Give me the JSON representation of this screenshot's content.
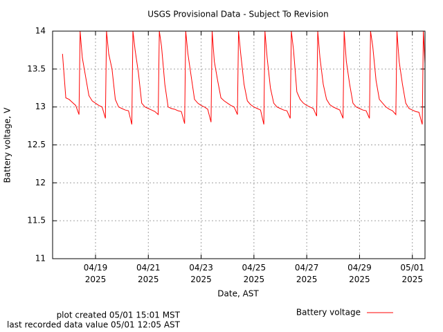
{
  "chart_data": {
    "type": "line",
    "title": "USGS Provisional Data - Subject To Revision",
    "x_label": "Date, AST",
    "y_label": "Battery voltage, V",
    "ylim": [
      11,
      14
    ],
    "yticks": [
      11,
      11.5,
      12,
      12.5,
      13,
      13.5,
      14
    ],
    "xlim": [
      "2025-04-17T09:00",
      "2025-05-01T11:30"
    ],
    "xticks": [
      {
        "value": "2025-04-19T00:00",
        "label": [
          "04/19",
          "2025"
        ]
      },
      {
        "value": "2025-04-21T00:00",
        "label": [
          "04/21",
          "2025"
        ]
      },
      {
        "value": "2025-04-23T00:00",
        "label": [
          "04/23",
          "2025"
        ]
      },
      {
        "value": "2025-04-25T00:00",
        "label": [
          "04/25",
          "2025"
        ]
      },
      {
        "value": "2025-04-27T00:00",
        "label": [
          "04/27",
          "2025"
        ]
      },
      {
        "value": "2025-04-29T00:00",
        "label": [
          "04/29",
          "2025"
        ]
      },
      {
        "value": "2025-05-01T00:00",
        "label": [
          "05/01",
          "2025"
        ]
      }
    ],
    "grid": true,
    "legend": "bottom",
    "footer": [
      "plot created 05/01 15:01 MST",
      "last recorded data value 05/01 12:05 AST"
    ],
    "x": [
      "2025-04-17T18:00",
      "2025-04-17T21:00",
      "2025-04-18T00:00",
      "2025-04-18T03:00",
      "2025-04-18T06:00",
      "2025-04-18T09:00",
      "2025-04-18T10:00",
      "2025-04-18T12:00",
      "2025-04-18T15:00",
      "2025-04-18T18:00",
      "2025-04-18T21:00",
      "2025-04-19T00:00",
      "2025-04-19T03:00",
      "2025-04-19T06:00",
      "2025-04-19T09:00",
      "2025-04-19T10:00",
      "2025-04-19T12:00",
      "2025-04-19T15:00",
      "2025-04-19T18:00",
      "2025-04-19T21:00",
      "2025-04-20T00:00",
      "2025-04-20T03:00",
      "2025-04-20T06:00",
      "2025-04-20T09:00",
      "2025-04-20T10:00",
      "2025-04-20T12:00",
      "2025-04-20T15:00",
      "2025-04-20T18:00",
      "2025-04-20T21:00",
      "2025-04-21T00:00",
      "2025-04-21T03:00",
      "2025-04-21T06:00",
      "2025-04-21T09:00",
      "2025-04-21T10:00",
      "2025-04-21T12:00",
      "2025-04-21T15:00",
      "2025-04-21T18:00",
      "2025-04-21T21:00",
      "2025-04-22T00:00",
      "2025-04-22T03:00",
      "2025-04-22T06:00",
      "2025-04-22T09:00",
      "2025-04-22T10:00",
      "2025-04-22T12:00",
      "2025-04-22T15:00",
      "2025-04-22T18:00",
      "2025-04-22T21:00",
      "2025-04-23T00:00",
      "2025-04-23T03:00",
      "2025-04-23T06:00",
      "2025-04-23T09:00",
      "2025-04-23T10:00",
      "2025-04-23T12:00",
      "2025-04-23T15:00",
      "2025-04-23T18:00",
      "2025-04-23T21:00",
      "2025-04-24T00:00",
      "2025-04-24T03:00",
      "2025-04-24T06:00",
      "2025-04-24T09:00",
      "2025-04-24T10:00",
      "2025-04-24T12:00",
      "2025-04-24T15:00",
      "2025-04-24T18:00",
      "2025-04-24T21:00",
      "2025-04-25T00:00",
      "2025-04-25T03:00",
      "2025-04-25T06:00",
      "2025-04-25T09:00",
      "2025-04-25T10:00",
      "2025-04-25T12:00",
      "2025-04-25T15:00",
      "2025-04-25T18:00",
      "2025-04-25T21:00",
      "2025-04-26T00:00",
      "2025-04-26T03:00",
      "2025-04-26T06:00",
      "2025-04-26T09:00",
      "2025-04-26T10:00",
      "2025-04-26T12:00",
      "2025-04-26T15:00",
      "2025-04-26T18:00",
      "2025-04-26T21:00",
      "2025-04-27T00:00",
      "2025-04-27T03:00",
      "2025-04-27T06:00",
      "2025-04-27T09:00",
      "2025-04-27T10:00",
      "2025-04-27T12:00",
      "2025-04-27T15:00",
      "2025-04-27T18:00",
      "2025-04-27T21:00",
      "2025-04-28T00:00",
      "2025-04-28T03:00",
      "2025-04-28T06:00",
      "2025-04-28T09:00",
      "2025-04-28T10:00",
      "2025-04-28T12:00",
      "2025-04-28T15:00",
      "2025-04-28T18:00",
      "2025-04-28T21:00",
      "2025-04-29T00:00",
      "2025-04-29T03:00",
      "2025-04-29T06:00",
      "2025-04-29T09:00",
      "2025-04-29T10:00",
      "2025-04-29T12:00",
      "2025-04-29T15:00",
      "2025-04-29T18:00",
      "2025-04-29T21:00",
      "2025-04-30T00:00",
      "2025-04-30T03:00",
      "2025-04-30T06:00",
      "2025-04-30T09:00",
      "2025-04-30T10:00",
      "2025-04-30T12:00",
      "2025-04-30T15:00",
      "2025-04-30T18:00",
      "2025-04-30T21:00",
      "2025-05-01T00:00",
      "2025-05-01T03:00",
      "2025-05-01T06:00",
      "2025-05-01T09:00",
      "2025-05-01T10:00",
      "2025-05-01T12:05"
    ],
    "series": [
      {
        "name": "Battery voltage",
        "color": "#ff0000",
        "values": [
          13.7,
          13.12,
          13.1,
          13.06,
          13.02,
          12.9,
          14,
          13.65,
          13.4,
          13.15,
          13.08,
          13.05,
          13.02,
          13.0,
          12.85,
          14,
          13.7,
          13.5,
          13.1,
          13.0,
          12.98,
          12.96,
          12.95,
          12.77,
          14,
          13.75,
          13.45,
          13.05,
          13.0,
          12.98,
          12.96,
          12.94,
          12.9,
          14,
          13.8,
          13.3,
          13.0,
          12.98,
          12.97,
          12.95,
          12.94,
          12.78,
          14,
          13.7,
          13.4,
          13.1,
          13.05,
          13.02,
          13.0,
          12.97,
          12.8,
          14,
          13.6,
          13.35,
          13.12,
          13.08,
          13.05,
          13.02,
          13.0,
          12.9,
          14,
          13.7,
          13.3,
          13.08,
          13.03,
          13.0,
          12.98,
          12.96,
          12.77,
          14,
          13.65,
          13.25,
          13.05,
          13.0,
          12.98,
          12.96,
          12.95,
          12.85,
          14,
          13.75,
          13.2,
          13.1,
          13.05,
          13.02,
          13.0,
          12.98,
          12.88,
          14,
          13.65,
          13.3,
          13.1,
          13.03,
          13.0,
          12.98,
          12.96,
          12.85,
          14,
          13.6,
          13.3,
          13.05,
          13.0,
          12.98,
          12.96,
          12.95,
          12.85,
          14,
          13.8,
          13.35,
          13.1,
          13.05,
          13.0,
          12.97,
          12.95,
          12.9,
          14,
          13.6,
          13.3,
          13.05,
          12.98,
          12.96,
          12.94,
          12.93,
          12.77,
          14,
          13.4
        ]
      }
    ]
  }
}
